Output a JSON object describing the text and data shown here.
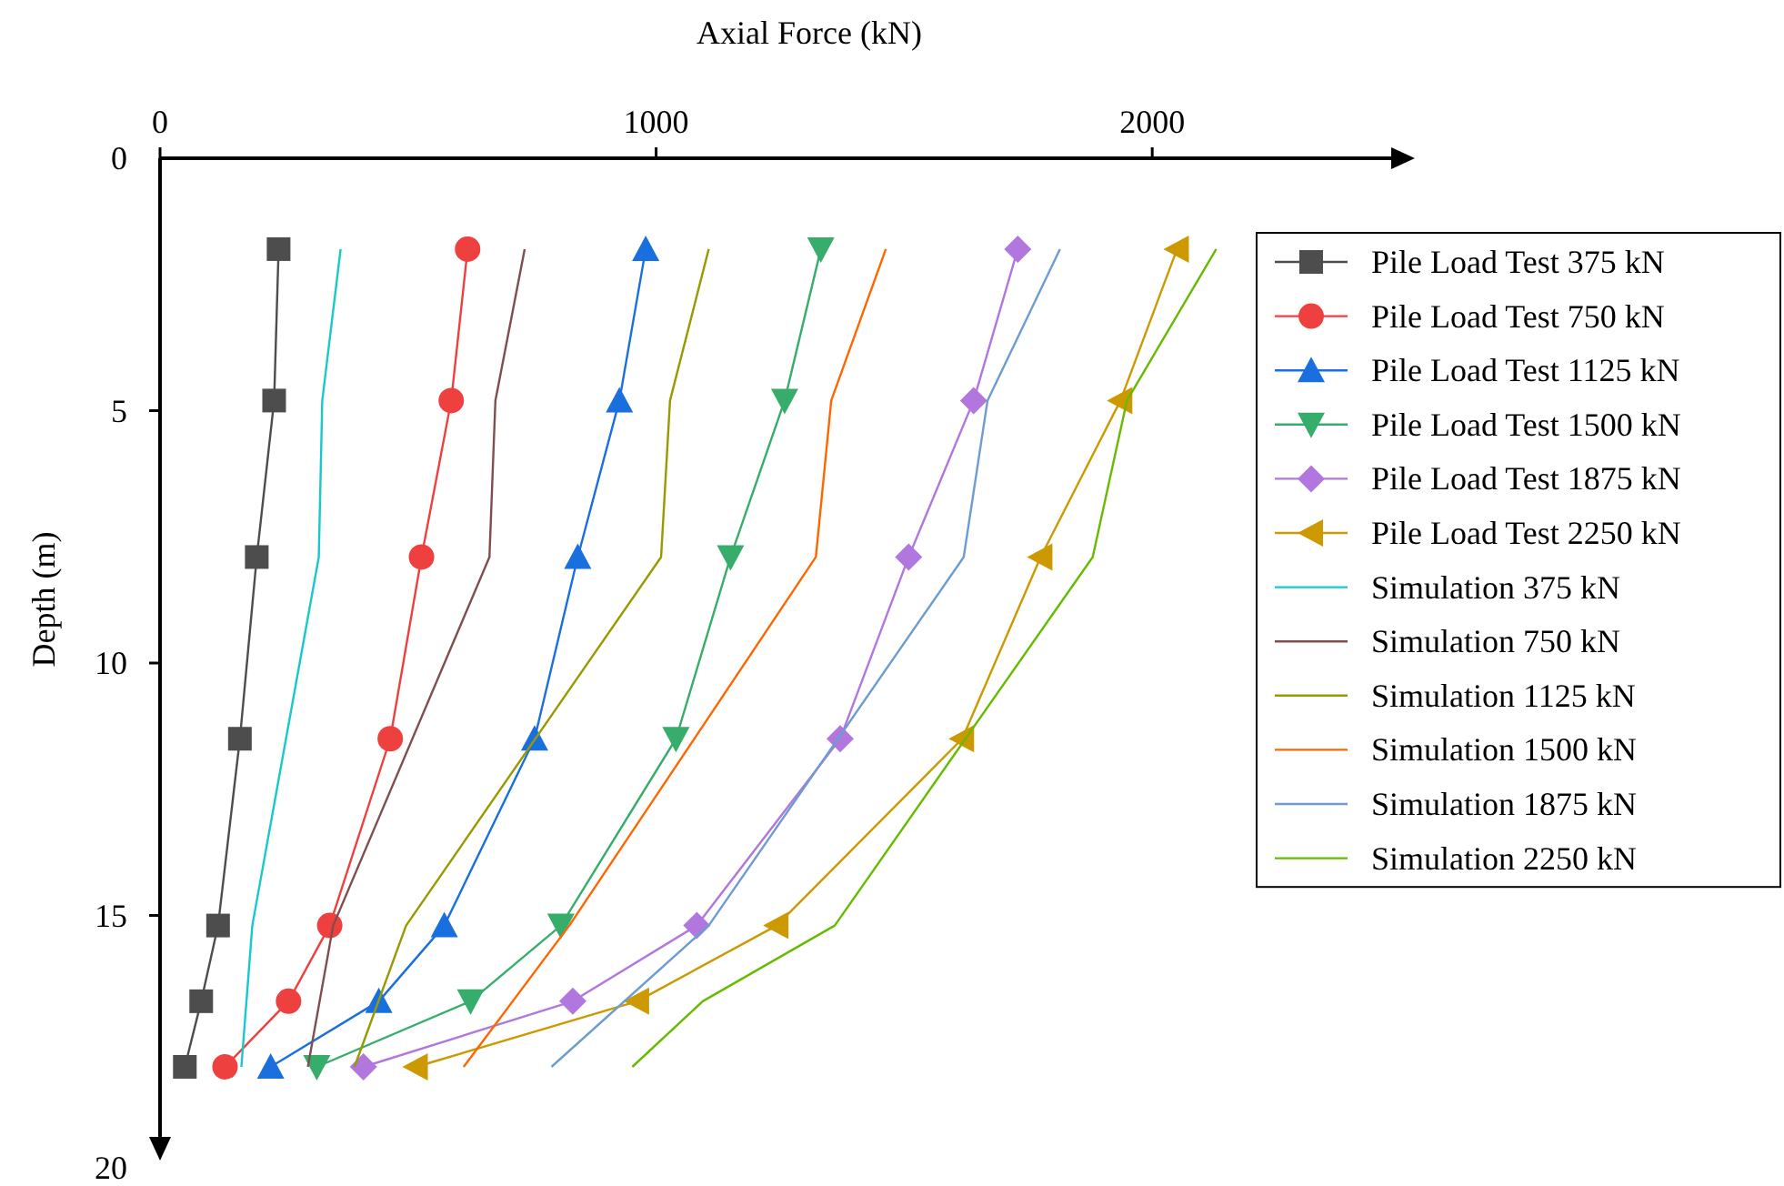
{
  "chart_data": {
    "type": "line",
    "xlabel": "Axial Force (kN)",
    "ylabel": "Depth (m)",
    "xlim": [
      0,
      2500
    ],
    "xticks": [
      0,
      1000,
      2000
    ],
    "ylim": [
      20,
      0
    ],
    "yticks": [
      0,
      5,
      10,
      15,
      20
    ],
    "legend": "right",
    "grid": false,
    "series": [
      {
        "name": "Pile Load Test 375 kN",
        "color": "#4d4d4d",
        "marker": "square",
        "x": [
          239,
          230,
          195,
          161,
          117,
          83,
          50
        ],
        "values": [
          1.8,
          4.8,
          7.9,
          11.5,
          15.2,
          16.7,
          18
        ]
      },
      {
        "name": "Pile Load Test 750 kN",
        "color": "#ef4040",
        "marker": "circle",
        "x": [
          620,
          587,
          527,
          464,
          342,
          259,
          131
        ],
        "values": [
          1.8,
          4.8,
          7.9,
          11.5,
          15.2,
          16.7,
          18
        ]
      },
      {
        "name": "Pile Load Test 1125 kN",
        "color": "#1a6fdf",
        "marker": "triangle",
        "x": [
          979,
          926,
          842,
          755,
          573,
          441,
          223
        ],
        "values": [
          1.8,
          4.8,
          7.9,
          11.5,
          15.2,
          16.7,
          18
        ]
      },
      {
        "name": "Pile Load Test 1500 kN",
        "color": "#37ad6b",
        "marker": "triangle-down",
        "x": [
          1332,
          1259,
          1150,
          1040,
          808,
          626,
          316
        ],
        "values": [
          1.8,
          4.8,
          7.9,
          11.5,
          15.2,
          16.7,
          18
        ]
      },
      {
        "name": "Pile Load Test 1875 kN",
        "color": "#b177de",
        "marker": "diamond",
        "x": [
          1729,
          1640,
          1509,
          1371,
          1082,
          832,
          410
        ],
        "values": [
          1.8,
          4.8,
          7.9,
          11.5,
          15.2,
          16.7,
          18
        ]
      },
      {
        "name": "Pile Load Test 2250 kN",
        "color": "#cc9900",
        "marker": "triangle-left",
        "x": [
          2050,
          1936,
          1775,
          1617,
          1243,
          962,
          516
        ],
        "values": [
          1.8,
          4.8,
          7.9,
          11.5,
          15.2,
          16.7,
          18
        ]
      },
      {
        "name": "Simulation 375 kN",
        "color": "#17c8cc",
        "marker": "none",
        "x": [
          364,
          327,
          320,
          186,
          164
        ],
        "values": [
          1.8,
          4.8,
          7.9,
          15.2,
          18
        ]
      },
      {
        "name": "Simulation 750 kN",
        "color": "#7f4f4f",
        "marker": "none",
        "x": [
          735,
          676,
          664,
          349,
          298
        ],
        "values": [
          1.8,
          4.8,
          7.9,
          15.2,
          18
        ]
      },
      {
        "name": "Simulation 1125 kN",
        "color": "#999900",
        "marker": "none",
        "x": [
          1106,
          1028,
          1010,
          496,
          392
        ],
        "values": [
          1.8,
          4.8,
          7.9,
          15.2,
          18
        ]
      },
      {
        "name": "Simulation 1500 kN",
        "color": "#ff6600",
        "marker": "none",
        "x": [
          1463,
          1353,
          1322,
          825,
          612
        ],
        "values": [
          1.8,
          4.8,
          7.9,
          15.2,
          18
        ]
      },
      {
        "name": "Simulation 1875 kN",
        "color": "#6c9cd1",
        "marker": "none",
        "x": [
          1814,
          1668,
          1620,
          1106,
          789
        ],
        "values": [
          1.8,
          4.8,
          7.9,
          15.2,
          18
        ]
      },
      {
        "name": "Simulation 2250 kN",
        "color": "#66bb00",
        "marker": "none",
        "x": [
          2129,
          1949,
          1880,
          1360,
          1094,
          952
        ],
        "values": [
          1.8,
          4.8,
          7.9,
          15.2,
          16.7,
          18
        ]
      }
    ]
  }
}
